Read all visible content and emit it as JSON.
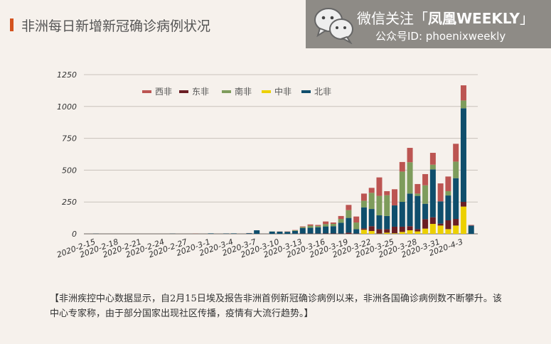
{
  "title": "非洲每日新增新冠确诊病例状况",
  "watermark": {
    "line1_prefix": "微信关注「",
    "line1_brand": "凤凰WEEKLY",
    "line1_suffix": "」",
    "line2": "公众号ID:  phoenixweekly",
    "icon": "wechat-icon"
  },
  "caption": "【非洲疾控中心数据显示，自2月15日埃及报告非洲首例新冠确诊病例以来，非洲各国确诊病例数不断攀升。该中心专家称，由于部分国家出现社区传播，疫情有大流行趋势。】",
  "chart_data": {
    "type": "bar",
    "stacked": true,
    "title": "非洲每日新增新冠确诊病例状况",
    "xlabel": "",
    "ylabel": "",
    "ylim": [
      0,
      1250
    ],
    "yticks": [
      0,
      250,
      500,
      750,
      1000,
      1250
    ],
    "grid": true,
    "legend_position": "top",
    "x": [
      "2020-2-15",
      "2020-2-16",
      "2020-2-17",
      "2020-2-18",
      "2020-2-19",
      "2020-2-20",
      "2020-2-21",
      "2020-2-22",
      "2020-2-23",
      "2020-2-24",
      "2020-2-25",
      "2020-2-26",
      "2020-2-27",
      "2020-2-28",
      "2020-2-29",
      "2020-3-1",
      "2020-3-2",
      "2020-3-3",
      "2020-3-4",
      "2020-3-5",
      "2020-3-6",
      "2020-3-7",
      "2020-3-8",
      "2020-3-9",
      "2020-3-10",
      "2020-3-11",
      "2020-3-12",
      "2020-3-13",
      "2020-3-14",
      "2020-3-15",
      "2020-3-16",
      "2020-3-17",
      "2020-3-18",
      "2020-3-19",
      "2020-3-20",
      "2020-3-21",
      "2020-3-22",
      "2020-3-23",
      "2020-3-24",
      "2020-3-25",
      "2020-3-26",
      "2020-3-27",
      "2020-3-28",
      "2020-3-29",
      "2020-3-30",
      "2020-3-31",
      "2020-4-1",
      "2020-4-2",
      "2020-4-3",
      "2020-4-4"
    ],
    "xtick_labels": [
      "2020-2-15",
      "2020-2-18",
      "2020-2-21",
      "2020-2-24",
      "2020-2-27",
      "2020-3-1",
      "2020-3-4",
      "2020-3-7",
      "2020-3-10",
      "2020-3-13",
      "2020-3-16",
      "2020-3-19",
      "2020-3-22",
      "2020-3-25",
      "2020-3-28",
      "2020-3-31",
      "2020-4-3"
    ],
    "legend_order": [
      "西非",
      "东非",
      "南非",
      "中非",
      "北非"
    ],
    "series": [
      {
        "name": "中非",
        "color": "#ecd000",
        "values": [
          0,
          0,
          0,
          0,
          0,
          0,
          0,
          0,
          0,
          0,
          0,
          0,
          0,
          0,
          0,
          0,
          0,
          0,
          0,
          0,
          0,
          0,
          0,
          0,
          0,
          0,
          0,
          0,
          0,
          0,
          0,
          0,
          0,
          0,
          0,
          32,
          22,
          2,
          9,
          4,
          15,
          28,
          19,
          41,
          78,
          65,
          37,
          65,
          214,
          0
        ]
      },
      {
        "name": "东非",
        "color": "#6a1e24",
        "values": [
          0,
          0,
          0,
          0,
          0,
          0,
          0,
          0,
          0,
          0,
          0,
          0,
          0,
          0,
          0,
          0,
          0,
          0,
          0,
          0,
          0,
          0,
          0,
          0,
          0,
          0,
          1,
          2,
          2,
          2,
          3,
          3,
          2,
          9,
          2,
          11,
          38,
          35,
          28,
          52,
          41,
          32,
          18,
          74,
          52,
          15,
          69,
          52,
          37,
          0
        ]
      },
      {
        "name": "北非",
        "color": "#0f4e6c",
        "values": [
          1,
          0,
          0,
          0,
          0,
          0,
          0,
          0,
          0,
          0,
          1,
          0,
          0,
          0,
          0,
          3,
          0,
          2,
          3,
          0,
          5,
          28,
          0,
          18,
          17,
          16,
          22,
          44,
          46,
          50,
          55,
          57,
          85,
          116,
          35,
          165,
          135,
          108,
          103,
          167,
          195,
          256,
          261,
          121,
          376,
          175,
          195,
          320,
          735,
          65
        ]
      },
      {
        "name": "南非",
        "color": "#7e9c5c",
        "values": [
          0,
          0,
          0,
          0,
          0,
          0,
          0,
          0,
          0,
          0,
          0,
          0,
          0,
          0,
          0,
          0,
          0,
          0,
          0,
          0,
          0,
          0,
          0,
          1,
          1,
          1,
          5,
          7,
          16,
          10,
          18,
          18,
          30,
          61,
          52,
          52,
          127,
          153,
          163,
          0,
          238,
          246,
          18,
          145,
          37,
          0,
          34,
          130,
          61,
          0
        ]
      },
      {
        "name": "西非",
        "color": "#bc5552",
        "values": [
          0,
          0,
          0,
          0,
          0,
          0,
          0,
          0,
          0,
          0,
          0,
          0,
          0,
          1,
          0,
          0,
          0,
          0,
          0,
          0,
          1,
          0,
          0,
          0,
          1,
          2,
          2,
          5,
          10,
          8,
          21,
          11,
          23,
          41,
          47,
          56,
          39,
          145,
          32,
          127,
          75,
          113,
          75,
          88,
          93,
          141,
          115,
          140,
          119,
          5
        ]
      }
    ]
  }
}
